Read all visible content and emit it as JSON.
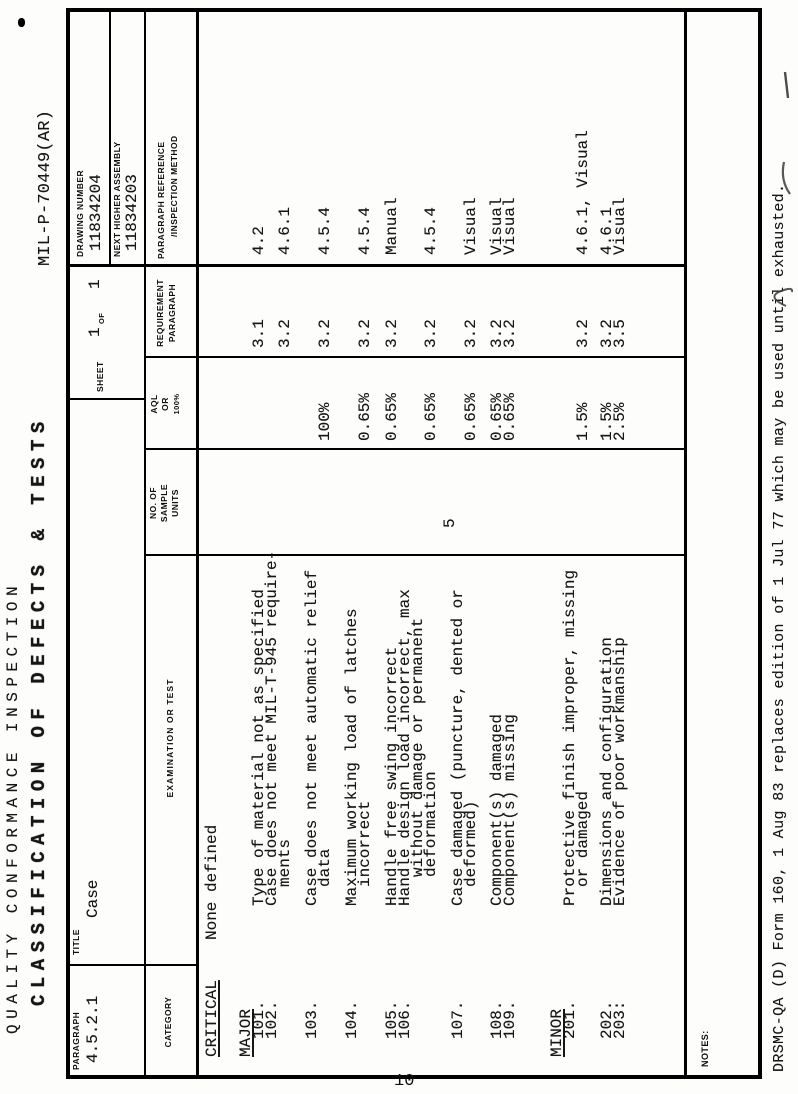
{
  "page": {
    "doc_title_line1": "QUALITY CONFORMANCE INSPECTION",
    "doc_title_line2": "CLASSIFICATION OF DEFECTS & TESTS",
    "spec_number": "MIL-P-70449(AR)",
    "page_number": "10",
    "footer": "DRSMC-QA (D) Form 160, 1 Aug 83 replaces edition of 1 Jul 77 which may be used until exhausted."
  },
  "form": {
    "paragraph_label": "PARAGRAPH",
    "paragraph_value": "4.5.2.1",
    "title_label": "TITLE",
    "title_value": "Case",
    "sheet_label": "SHEET",
    "sheet_value_1": "1",
    "sheet_of_label": "OF",
    "sheet_value_2": "1",
    "drawing_number_label": "DRAWING NUMBER",
    "drawing_number_value": "11834204",
    "next_higher_assembly_label": "NEXT HIGHER ASSEMBLY",
    "next_higher_assembly_value": "11834203",
    "notes_label": "NOTES:",
    "columns": {
      "category": "CATEGORY",
      "examination": "EXAMINATION OR TEST",
      "sample_units": [
        "NO. OF",
        "SAMPLE",
        "UNITS"
      ],
      "aql": [
        "AQL",
        "OR",
        "100%"
      ],
      "requirement": [
        "REQUIREMENT",
        "PARAGRAPH"
      ],
      "reference": [
        "PARAGRAPH REFERENCE",
        "/INSPECTION METHOD"
      ]
    }
  },
  "table": {
    "critical_label": "CRITICAL",
    "critical_text": "None defined",
    "major_label": "MAJOR",
    "minor_label": "MINOR",
    "sample_units_value": "5",
    "rows": [
      {
        "num": "101.",
        "lines": [
          [
            "Type of material not as specified",
            0
          ]
        ],
        "aql": "",
        "req": "3.1",
        "ref": "4.2"
      },
      {
        "num": "102.",
        "lines": [
          [
            "Case does not meet MIL-T-945 require-",
            0
          ],
          [
            "ments",
            2
          ]
        ],
        "aql": "",
        "req": "3.2",
        "ref": "4.6.1"
      },
      {
        "num": "103.",
        "lines": [
          [
            "Case does not meet automatic relief",
            0
          ],
          [
            "data",
            2
          ]
        ],
        "aql": "100%",
        "req": "3.2",
        "ref": "4.5.4"
      },
      {
        "num": "104.",
        "lines": [
          [
            "Maximum working load of latches",
            0
          ],
          [
            "incorrect",
            2
          ]
        ],
        "aql": "0.65%",
        "req": "3.2",
        "ref": "4.5.4"
      },
      {
        "num": "105.",
        "lines": [
          [
            "Handle free swing incorrect",
            0
          ]
        ],
        "aql": "0.65%",
        "req": "3.2",
        "ref": "Manual"
      },
      {
        "num": "106.",
        "lines": [
          [
            "Handle design load incorrect, max",
            0
          ],
          [
            "without damage or permanent",
            3
          ],
          [
            "deformation",
            3
          ]
        ],
        "aql": "0.65%",
        "req": "3.2",
        "ref": "4.5.4"
      },
      {
        "num": "107.",
        "lines": [
          [
            "Case damaged (puncture, dented or",
            0
          ],
          [
            "deformed)",
            2
          ]
        ],
        "aql": "0.65%",
        "req": "3.2",
        "ref": "Visual"
      },
      {
        "num": "108.",
        "lines": [
          [
            "Component(s) damaged",
            0
          ]
        ],
        "aql": "0.65%",
        "req": "3.2",
        "ref": "Visual"
      },
      {
        "num": "109.",
        "lines": [
          [
            "Component(s) missing",
            0
          ]
        ],
        "aql": "0.65%",
        "req": "3.2",
        "ref": "Visual"
      },
      {
        "num": "201.",
        "lines": [
          [
            "Protective finish improper, missing",
            0
          ],
          [
            "or damaged",
            2
          ]
        ],
        "aql": "1.5%",
        "req": "3.2",
        "ref": "4.6.1, Visual"
      },
      {
        "num": "202.",
        "lines": [
          [
            "Dimensions and configuration",
            0
          ]
        ],
        "aql": "1.5%",
        "req": "3.2",
        "ref": "4.6.1"
      },
      {
        "num": "203:",
        "lines": [
          [
            "Evidence of poor workmanship",
            0
          ]
        ],
        "aql": "2.5%",
        "req": "3.5",
        "ref": "Visual"
      }
    ]
  }
}
